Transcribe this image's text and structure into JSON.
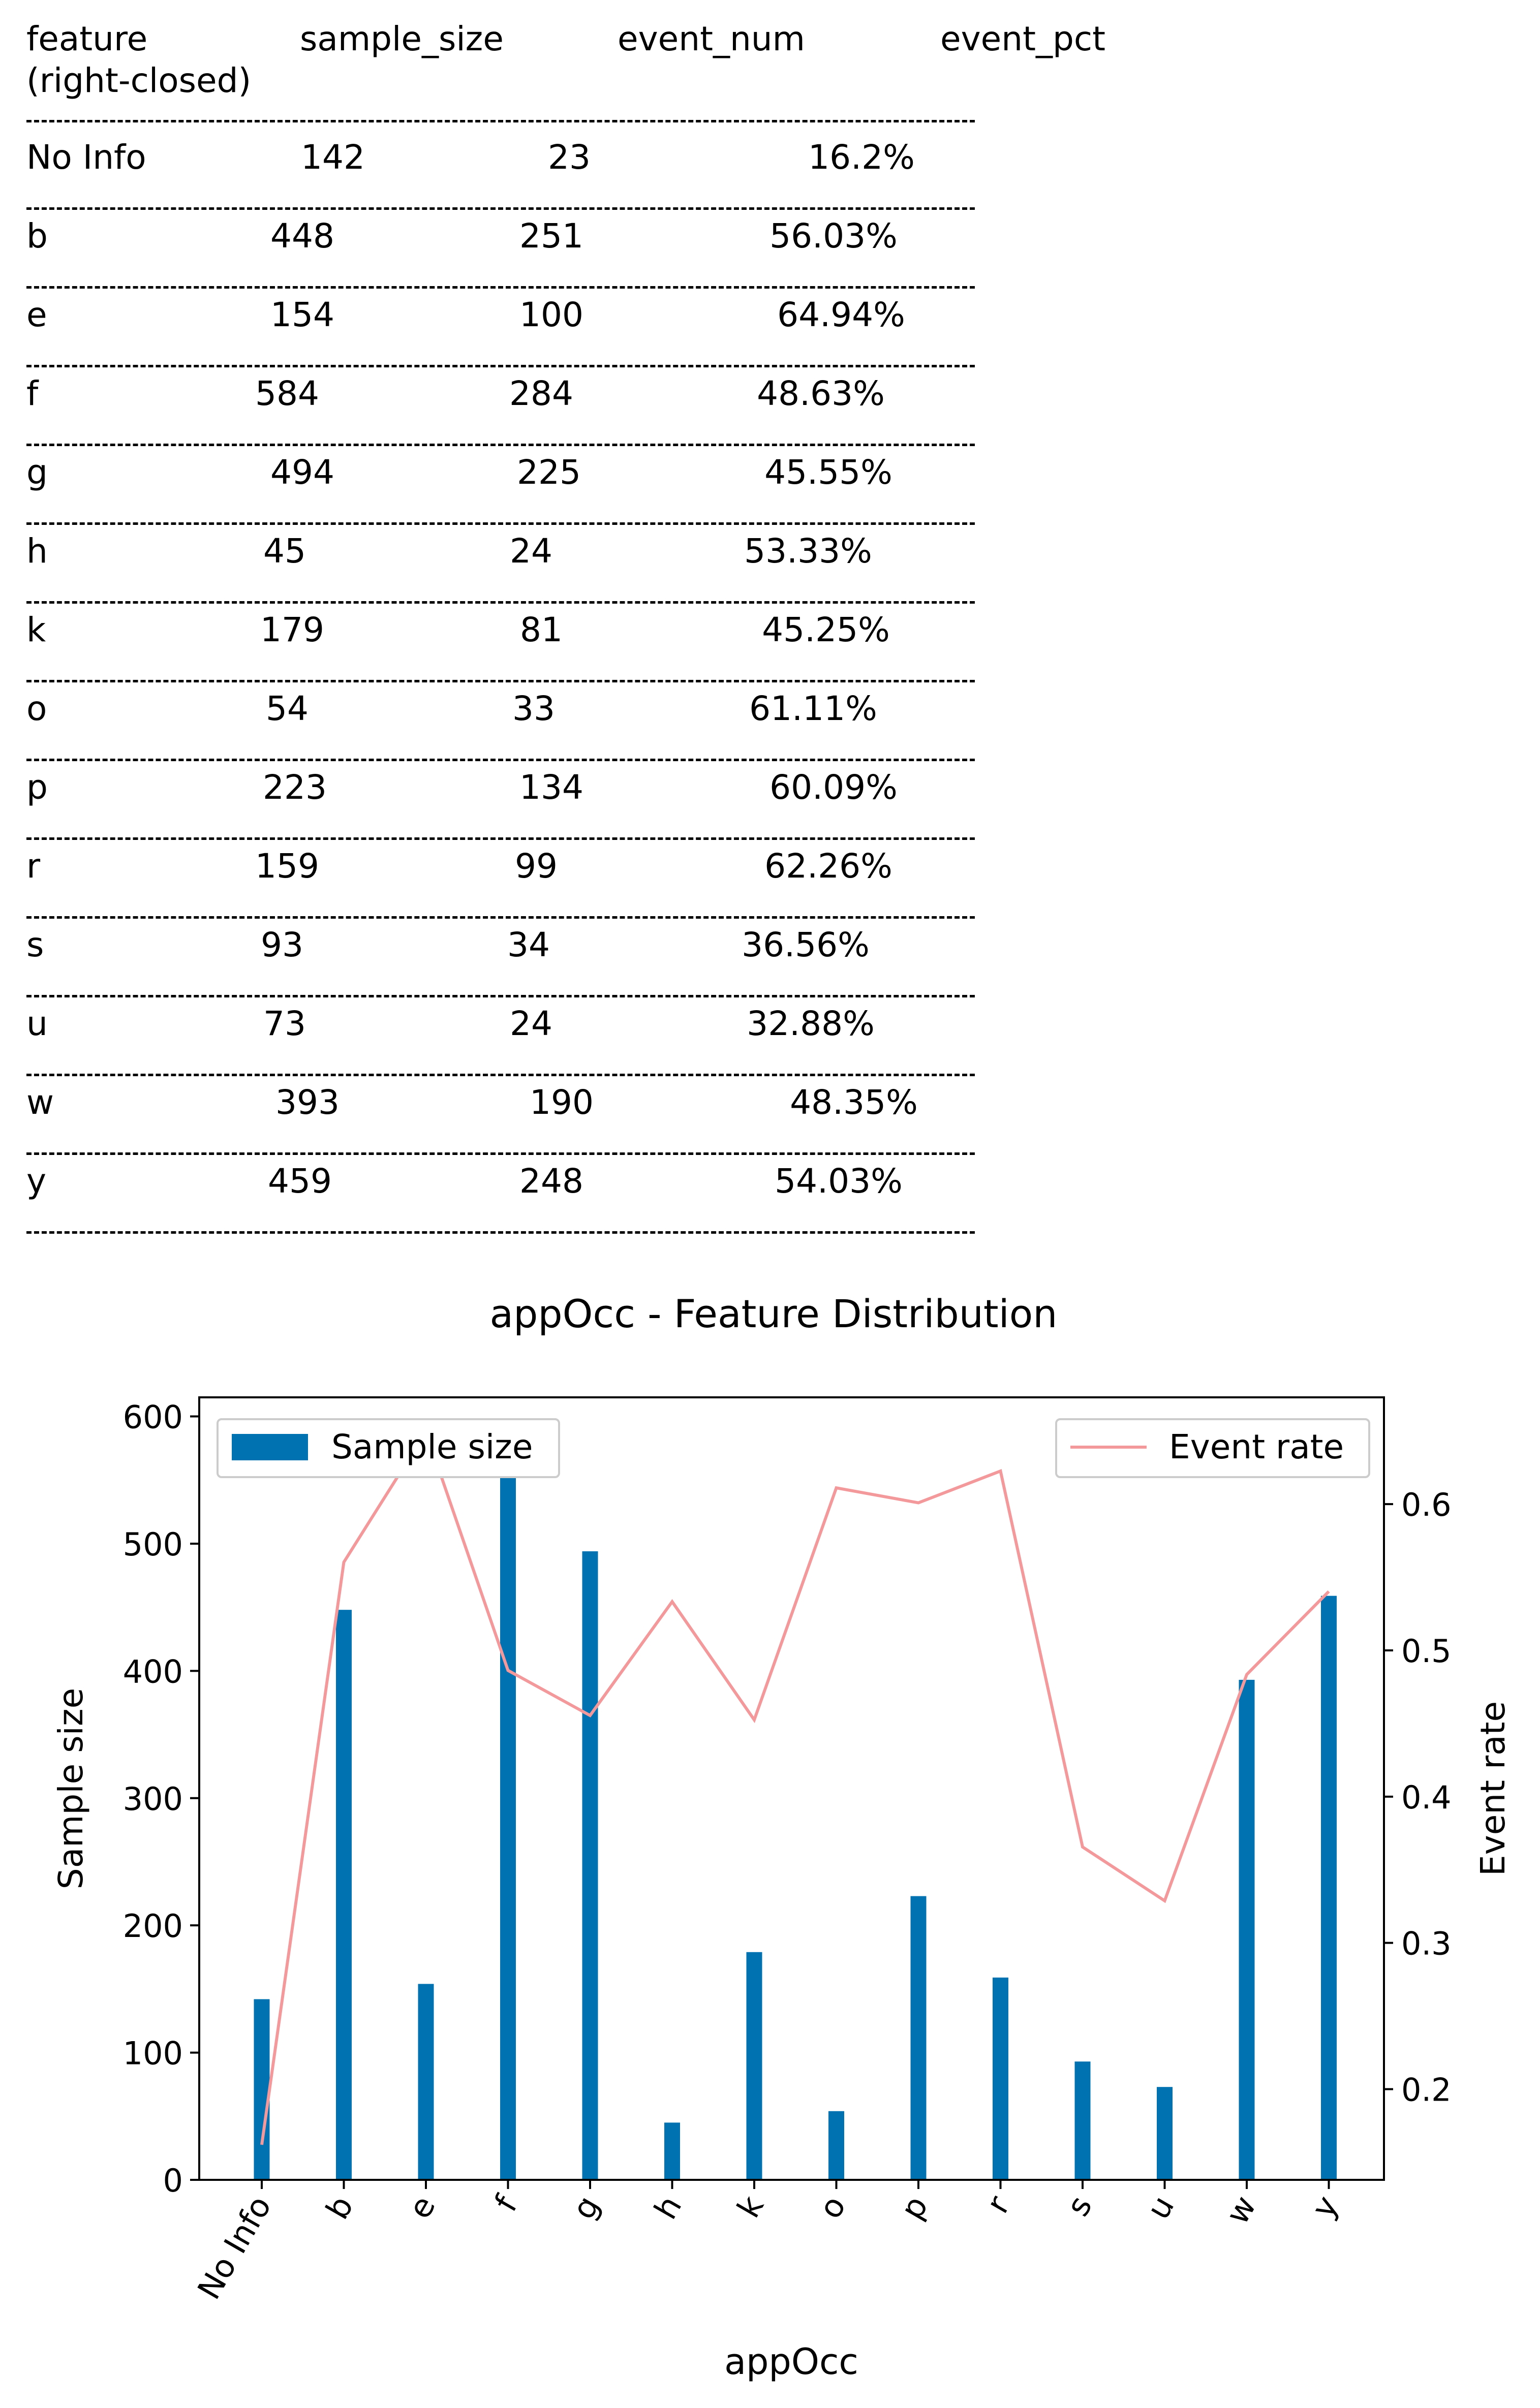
{
  "table": {
    "headers": [
      "feature\n(right-closed)",
      "sample_size",
      "event_num",
      "event_pct"
    ],
    "rows": [
      {
        "feature": "No Info",
        "sample_size": "142",
        "event_num": "23",
        "event_pct": "16.2%"
      },
      {
        "feature": "b",
        "sample_size": "448",
        "event_num": "251",
        "event_pct": "56.03%"
      },
      {
        "feature": "e",
        "sample_size": "154",
        "event_num": "100",
        "event_pct": "64.94%"
      },
      {
        "feature": "f",
        "sample_size": "584",
        "event_num": "284",
        "event_pct": "48.63%"
      },
      {
        "feature": "g",
        "sample_size": "494",
        "event_num": "225",
        "event_pct": "45.55%"
      },
      {
        "feature": "h",
        "sample_size": "45",
        "event_num": "24",
        "event_pct": "53.33%"
      },
      {
        "feature": "k",
        "sample_size": "179",
        "event_num": "81",
        "event_pct": "45.25%"
      },
      {
        "feature": "o",
        "sample_size": "54",
        "event_num": "33",
        "event_pct": "61.11%"
      },
      {
        "feature": "p",
        "sample_size": "223",
        "event_num": "134",
        "event_pct": "60.09%"
      },
      {
        "feature": "r",
        "sample_size": "159",
        "event_num": "99",
        "event_pct": "62.26%"
      },
      {
        "feature": "s",
        "sample_size": "93",
        "event_num": "34",
        "event_pct": "36.56%"
      },
      {
        "feature": "u",
        "sample_size": "73",
        "event_num": "24",
        "event_pct": "32.88%"
      },
      {
        "feature": "w",
        "sample_size": "393",
        "event_num": "190",
        "event_pct": "48.35%"
      },
      {
        "feature": "y",
        "sample_size": "459",
        "event_num": "248",
        "event_pct": "54.03%"
      }
    ]
  },
  "chart_data": {
    "type": "bar",
    "title": "appOcc - Feature Distribution",
    "xlabel": "appOcc",
    "ylabel": "Sample size",
    "y2label": "Event rate",
    "categories": [
      "No Info",
      "b",
      "e",
      "f",
      "g",
      "h",
      "k",
      "o",
      "p",
      "r",
      "s",
      "u",
      "w",
      "y"
    ],
    "series": [
      {
        "name": "Sample size",
        "type": "bar",
        "axis": "left",
        "color": "#0072b2",
        "values": [
          142,
          448,
          154,
          584,
          494,
          45,
          179,
          54,
          223,
          159,
          93,
          73,
          393,
          459
        ]
      },
      {
        "name": "Event rate",
        "type": "line",
        "axis": "right",
        "color": "#f4999b",
        "values": [
          0.162,
          0.5603,
          0.6494,
          0.4863,
          0.4555,
          0.5333,
          0.4525,
          0.6111,
          0.6009,
          0.6226,
          0.3656,
          0.3288,
          0.4835,
          0.5403
        ]
      }
    ],
    "ylim": [
      0,
      615
    ],
    "y2lim": [
      0.138,
      0.673
    ],
    "yticks": [
      0,
      100,
      200,
      300,
      400,
      500,
      600
    ],
    "y2ticks": [
      0.2,
      0.3,
      0.4,
      0.5,
      0.6
    ],
    "legend": {
      "bars": "upper-left",
      "line": "upper-right"
    },
    "grid": false
  }
}
